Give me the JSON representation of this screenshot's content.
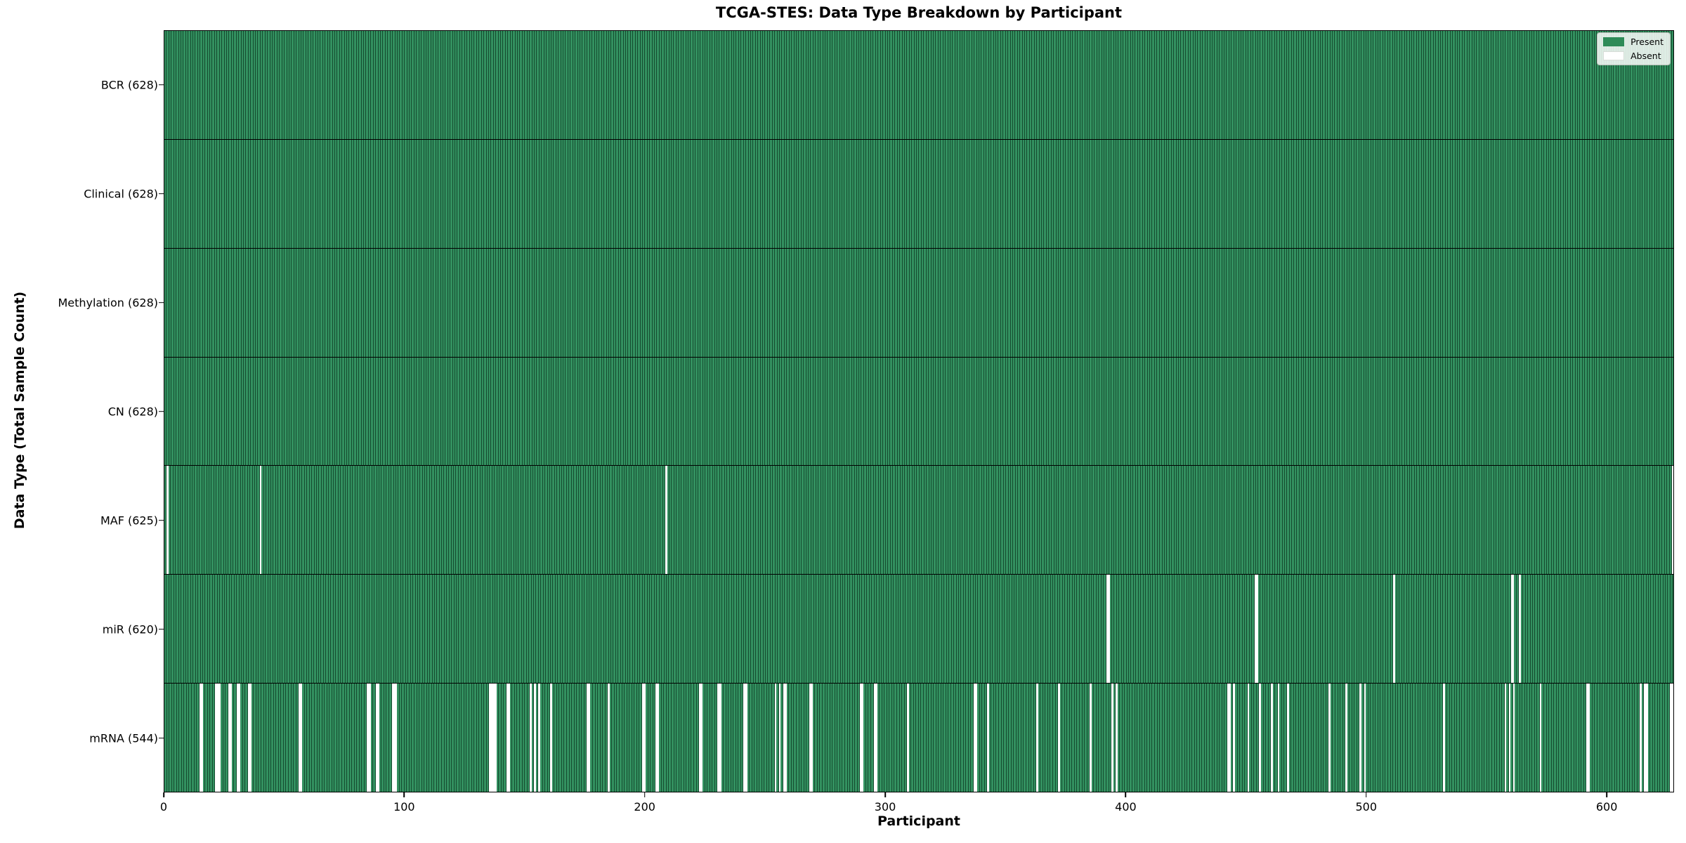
{
  "title": "TCGA-STES: Data Type Breakdown by Participant",
  "x_axis_label": "Participant",
  "y_axis_label": "Data Type (Total Sample Count)",
  "legend": {
    "present_label": "Present",
    "absent_label": "Absent"
  },
  "colors": {
    "present": "#2e8b57",
    "present_fill": "#339160",
    "bar_edge": "rgba(6,38,22,0.65)",
    "absent": "#ffffff",
    "frame": "#000000"
  },
  "chart_data": {
    "type": "heatmap",
    "title": "TCGA-STES: Data Type Breakdown by Participant",
    "xlabel": "Participant",
    "ylabel": "Data Type (Total Sample Count)",
    "legend": [
      "Present",
      "Absent"
    ],
    "legend_position": "upper right",
    "n_participants": 628,
    "x_ticks": [
      0,
      100,
      200,
      300,
      400,
      500,
      600
    ],
    "x_range": [
      0,
      628
    ],
    "cell_states": {
      "present": 1,
      "absent": 0
    },
    "rows": [
      {
        "name": "BCR",
        "total": 628,
        "tick_label": "BCR (628)",
        "absent_participants": []
      },
      {
        "name": "Clinical",
        "total": 628,
        "tick_label": "Clinical (628)",
        "absent_participants": []
      },
      {
        "name": "Methylation",
        "total": 628,
        "tick_label": "Methylation (628)",
        "absent_participants": []
      },
      {
        "name": "CN",
        "total": 628,
        "tick_label": "CN (628)",
        "absent_participants": []
      },
      {
        "name": "MAF",
        "total": 625,
        "tick_label": "MAF (625)",
        "absent_participants": [
          1,
          40,
          209
        ]
      },
      {
        "name": "miR",
        "total": 620,
        "tick_label": "miR (620)",
        "absent_participants": [
          390,
          391,
          452,
          453,
          510,
          559,
          560,
          563
        ]
      },
      {
        "name": "mRNA",
        "total": 544,
        "tick_label": "mRNA (544)",
        "absent_participants": [
          14,
          15,
          21,
          22,
          23,
          27,
          28,
          31,
          32,
          36,
          37,
          57,
          58,
          85,
          86,
          89,
          90,
          96,
          97,
          98,
          136,
          137,
          138,
          139,
          144,
          145,
          154,
          156,
          158,
          163,
          178,
          179,
          187,
          201,
          202,
          207,
          208,
          225,
          226,
          233,
          234,
          244,
          245,
          257,
          259,
          261,
          262,
          272,
          273,
          293,
          294,
          299,
          300,
          313,
          340,
          341,
          346,
          366,
          375,
          388,
          397,
          399,
          444,
          445,
          447,
          453,
          458,
          463,
          466,
          470,
          487,
          494,
          500,
          502,
          534,
          559,
          561,
          563,
          574,
          593,
          594,
          615,
          617,
          618
        ]
      }
    ]
  }
}
